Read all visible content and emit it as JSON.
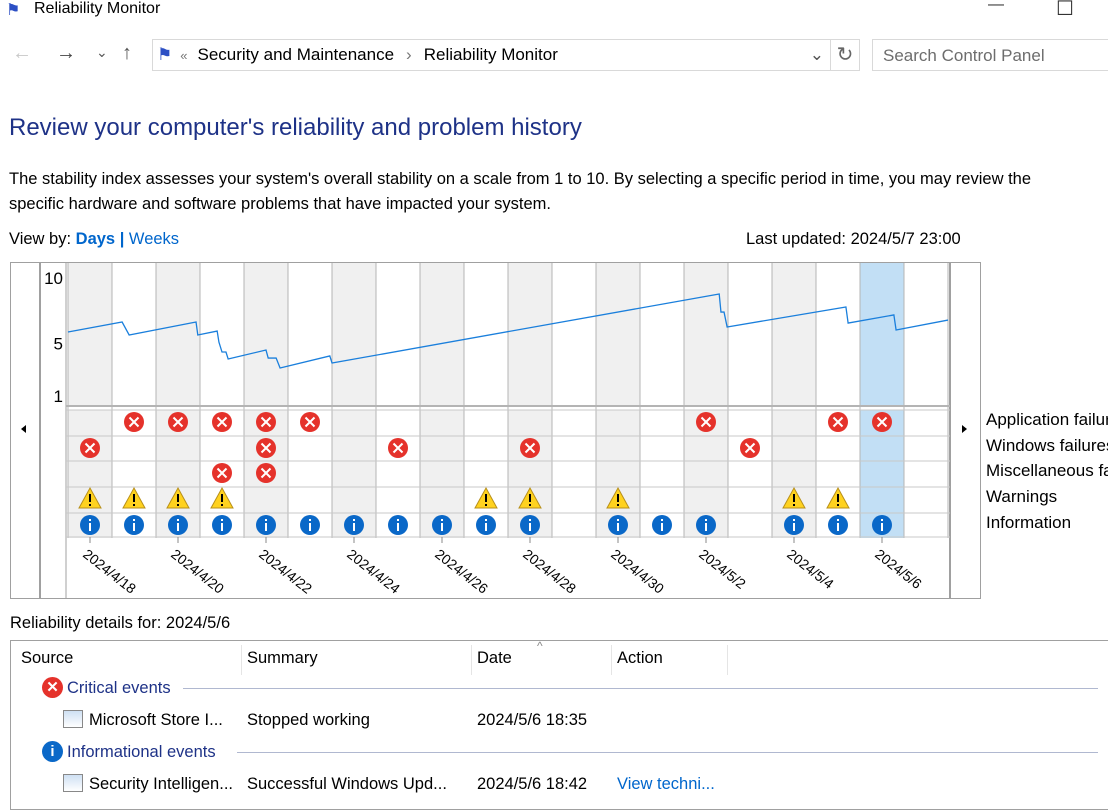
{
  "window": {
    "title": "Reliability Monitor",
    "minimize": "—",
    "maximize": "☐"
  },
  "nav": {
    "back": "←",
    "forward": "→",
    "recent": "⌄",
    "up": "↑",
    "refresh": "↻",
    "dropdown": "⌄"
  },
  "breadcrumb": {
    "overflow": "«",
    "items": [
      "Security and Maintenance",
      "Reliability Monitor"
    ],
    "separator": "›"
  },
  "search": {
    "placeholder": "Search Control Panel"
  },
  "heading": "Review your computer's reliability and problem history",
  "description": [
    "The stability index assesses your system's overall stability on a scale from 1 to 10. By selecting a specific period in time, you may review the",
    "specific hardware and software problems that have impacted your system."
  ],
  "view_by": {
    "label": "View by:",
    "days": "Days",
    "sep": "|",
    "weeks": "Weeks"
  },
  "last_updated": "Last updated: 2024/5/7 23:00",
  "chart_data": {
    "type": "line",
    "title": "Stability index",
    "ylim": [
      1,
      10
    ],
    "yticks": [
      "10",
      "5",
      "1"
    ],
    "ytick_values": [
      10,
      5,
      1
    ],
    "dates": [
      "2024/4/18",
      "2024/4/19",
      "2024/4/20",
      "2024/4/21",
      "2024/4/22",
      "2024/4/23",
      "2024/4/24",
      "2024/4/25",
      "2024/4/26",
      "2024/4/27",
      "2024/4/28",
      "2024/4/29",
      "2024/4/30",
      "2024/5/1",
      "2024/5/2",
      "2024/5/3",
      "2024/5/4",
      "2024/5/5",
      "2024/5/6",
      "2024/5/7"
    ],
    "date_labels": [
      "2024/4/18",
      "2024/4/20",
      "2024/4/22",
      "2024/4/24",
      "2024/4/26",
      "2024/4/28",
      "2024/4/30",
      "2024/5/2",
      "2024/5/4",
      "2024/5/6"
    ],
    "selected_date": "2024/5/6",
    "stability": [
      [
        0,
        5.88
      ],
      [
        1.23,
        6.64
      ],
      [
        1.39,
        5.65
      ],
      [
        2.91,
        6.64
      ],
      [
        2.95,
        5.65
      ],
      [
        3.39,
        5.95
      ],
      [
        3.43,
        5.11
      ],
      [
        3.5,
        4.35
      ],
      [
        3.59,
        4.35
      ],
      [
        3.64,
        3.82
      ],
      [
        4.5,
        4.5
      ],
      [
        4.55,
        3.89
      ],
      [
        4.73,
        3.89
      ],
      [
        4.82,
        3.13
      ],
      [
        5.95,
        4.05
      ],
      [
        6.0,
        3.51
      ],
      [
        14.8,
        8.78
      ],
      [
        14.84,
        7.4
      ],
      [
        14.91,
        7.4
      ],
      [
        14.98,
        6.26
      ],
      [
        17.68,
        7.79
      ],
      [
        17.73,
        6.56
      ],
      [
        18.77,
        7.18
      ],
      [
        18.82,
        6.03
      ],
      [
        20,
        6.79
      ]
    ],
    "event_rows": [
      {
        "label": "Application failures",
        "kind": "error",
        "days": [
          1,
          2,
          3,
          4,
          5,
          14,
          17,
          18
        ]
      },
      {
        "label": "Windows failures",
        "kind": "error",
        "days": [
          0,
          4,
          7,
          10,
          15
        ]
      },
      {
        "label": "Miscellaneous failures",
        "kind": "error",
        "days": [
          3,
          4
        ]
      },
      {
        "label": "Warnings",
        "kind": "warning",
        "days": [
          0,
          1,
          2,
          3,
          9,
          10,
          12,
          16,
          17
        ]
      },
      {
        "label": "Information",
        "kind": "info",
        "days": [
          0,
          1,
          2,
          3,
          4,
          5,
          6,
          7,
          8,
          9,
          10,
          12,
          13,
          14,
          16,
          17,
          18
        ]
      }
    ]
  },
  "colors": {
    "line": "#1a7fdc",
    "error": "#e5322b",
    "warning": "#ffd21f",
    "info": "#0a68c8",
    "selected": "#c2dff5",
    "shade": "#f0f0f0",
    "link": "#0066cc"
  },
  "details": {
    "label": "Reliability details for: 2024/5/6",
    "columns": [
      "Source",
      "Summary",
      "Date",
      "Action"
    ],
    "groups": [
      {
        "title": "Critical events",
        "rows": [
          {
            "source": "Microsoft Store I...",
            "summary": "Stopped working",
            "date": "2024/5/6 18:35",
            "action": ""
          }
        ]
      },
      {
        "title": "Informational events",
        "rows": [
          {
            "source": "Security Intelligen...",
            "summary": "Successful Windows Upd...",
            "date": "2024/5/6 18:42",
            "action": "View techni..."
          }
        ]
      }
    ]
  }
}
